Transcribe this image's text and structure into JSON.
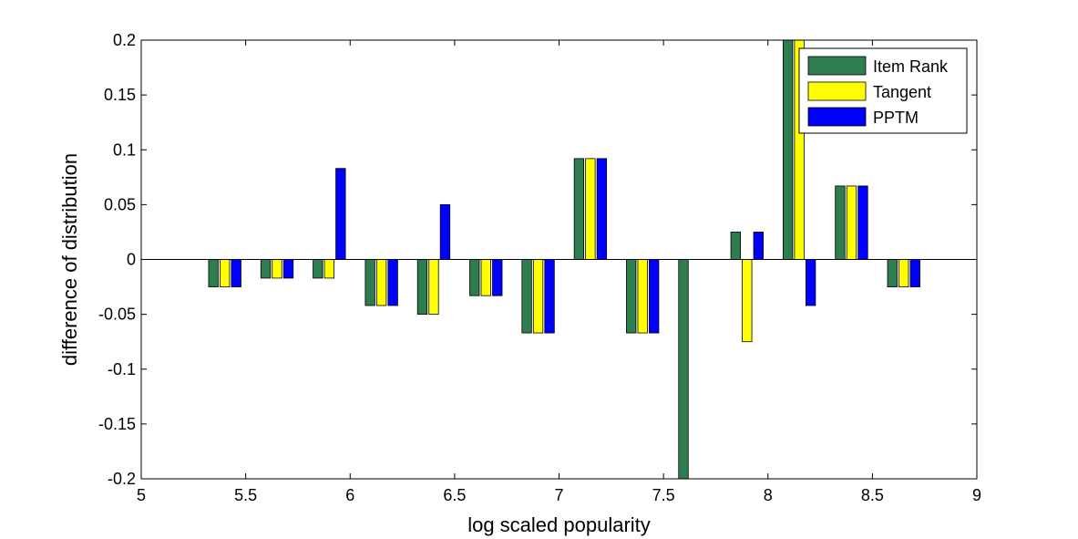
{
  "chart_data": {
    "type": "bar",
    "xlabel": "log scaled popularity",
    "ylabel": "difference of distribution",
    "xlim": [
      5,
      9
    ],
    "ylim": [
      -0.2,
      0.2
    ],
    "xticks": [
      "5",
      "5.5",
      "6",
      "6.5",
      "7",
      "7.5",
      "8",
      "8.5",
      "9"
    ],
    "yticks": [
      "-0.2",
      "-0.15",
      "-0.1",
      "-0.05",
      "0",
      "0.05",
      "0.1",
      "0.15",
      "0.2"
    ],
    "legend_position": "top-right",
    "bin_centers": [
      5.4,
      5.65,
      5.9,
      6.15,
      6.4,
      6.65,
      6.9,
      7.15,
      7.4,
      7.65,
      7.9,
      8.15,
      8.4,
      8.65
    ],
    "series": [
      {
        "name": "Item Rank",
        "color": "#2e7d4f",
        "values": [
          -0.025,
          -0.017,
          -0.017,
          -0.042,
          -0.05,
          -0.033,
          -0.067,
          0.092,
          -0.067,
          -0.2,
          0.025,
          0.2,
          0.067,
          -0.025
        ]
      },
      {
        "name": "Tangent",
        "color": "#ffff00",
        "values": [
          -0.025,
          -0.017,
          -0.017,
          -0.042,
          -0.05,
          -0.033,
          -0.067,
          0.092,
          -0.067,
          0,
          -0.075,
          0.2,
          0.067,
          -0.025
        ]
      },
      {
        "name": "PPTM",
        "color": "#0000ff",
        "values": [
          -0.025,
          -0.017,
          0.083,
          -0.042,
          0.05,
          -0.033,
          -0.067,
          0.092,
          -0.067,
          0,
          0.025,
          -0.042,
          0.067,
          -0.025
        ]
      }
    ]
  }
}
